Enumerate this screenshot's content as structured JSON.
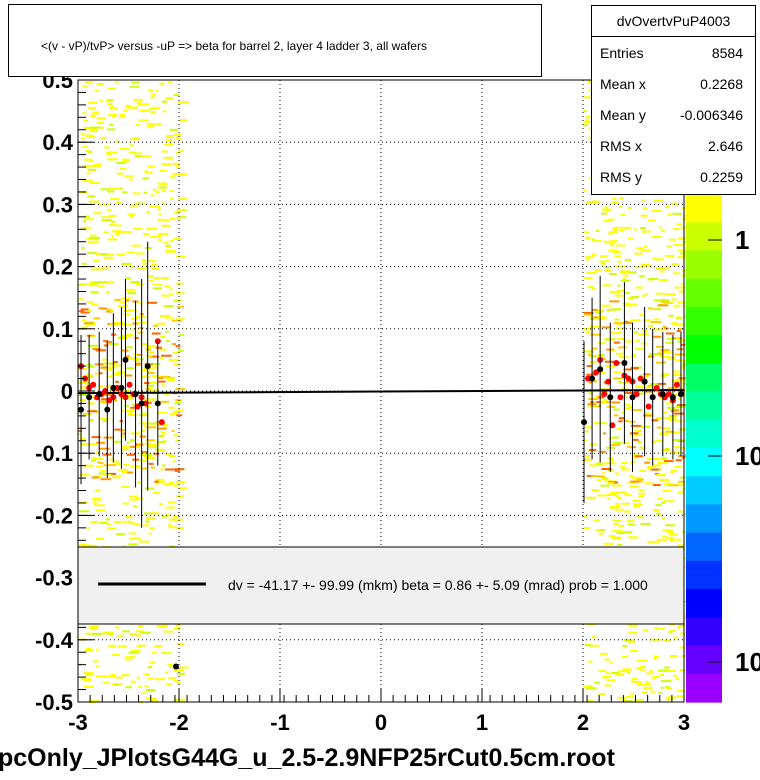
{
  "title": "<(v - vP)/tvP> versus  -uP => beta for barrel 2, layer 4 ladder 3, all wafers",
  "stats": {
    "name": "dvOvertvPuP4003",
    "rows": [
      {
        "key": "Entries",
        "value": "8584"
      },
      {
        "key": "Mean x",
        "value": "0.2268"
      },
      {
        "key": "Mean y",
        "value": "-0.006346"
      },
      {
        "key": "RMS x",
        "value": "2.646"
      },
      {
        "key": "RMS y",
        "value": "0.2259"
      }
    ]
  },
  "fit_legend": "dv =  -41.17 +- 99.99 (mkm) beta =    0.86 +-  5.09 (mrad) prob = 1.000",
  "file_label": "pcOnly_JPlotsG44G_u_2.5-2.9NFP25rCut0.5cm.root",
  "chart_data": {
    "type": "scatter",
    "title": "<(v - vP)/tvP> versus  -uP => beta for barrel 2, layer 4 ladder 3, all wafers",
    "xlim": [
      -3,
      3
    ],
    "ylim": [
      -0.5,
      0.5
    ],
    "x_ticks": [
      "-3",
      "-2",
      "-1",
      "0",
      "1",
      "2",
      "3"
    ],
    "y_ticks": [
      "-0.5",
      "-0.4",
      "-0.3",
      "-0.2",
      "-0.1",
      "0",
      "0.1",
      "0.2",
      "0.3",
      "0.4",
      "0.5"
    ],
    "z_ticks": [
      "1",
      "10",
      "10"
    ],
    "grid": true,
    "colors": {
      "fit_line": "#000000",
      "red_points": "#ff0000",
      "black_points": "#000000"
    },
    "series": [
      {
        "color": "#ff0000",
        "points": [
          {
            "x": -2.97,
            "y": 0.04
          },
          {
            "x": -2.93,
            "y": 0.02
          },
          {
            "x": -2.89,
            "y": 0.005
          },
          {
            "x": -2.85,
            "y": 0.01
          },
          {
            "x": -2.81,
            "y": -0.01
          },
          {
            "x": -2.77,
            "y": -0.005
          },
          {
            "x": -2.73,
            "y": 0.0
          },
          {
            "x": -2.69,
            "y": -0.015
          },
          {
            "x": -2.65,
            "y": -0.01
          },
          {
            "x": -2.61,
            "y": 0.005
          },
          {
            "x": -2.57,
            "y": -0.005
          },
          {
            "x": -2.53,
            "y": -0.01
          },
          {
            "x": -2.49,
            "y": 0.01
          },
          {
            "x": -2.45,
            "y": -0.005
          },
          {
            "x": -2.41,
            "y": -0.025
          },
          {
            "x": -2.37,
            "y": -0.01
          },
          {
            "x": -2.33,
            "y": -0.02
          },
          {
            "x": -2.21,
            "y": 0.08
          },
          {
            "x": -2.17,
            "y": -0.05
          },
          {
            "x": 2.05,
            "y": 0.02
          },
          {
            "x": 2.13,
            "y": 0.03
          },
          {
            "x": 2.17,
            "y": 0.05
          },
          {
            "x": 2.21,
            "y": -0.005
          },
          {
            "x": 2.25,
            "y": 0.015
          },
          {
            "x": 2.29,
            "y": -0.055
          },
          {
            "x": 2.33,
            "y": 0.045
          },
          {
            "x": 2.37,
            "y": -0.01
          },
          {
            "x": 2.41,
            "y": 0.025
          },
          {
            "x": 2.45,
            "y": 0.02
          },
          {
            "x": 2.49,
            "y": 0.015
          },
          {
            "x": 2.53,
            "y": -0.005
          },
          {
            "x": 2.57,
            "y": 0.02
          },
          {
            "x": 2.61,
            "y": 0.015
          },
          {
            "x": 2.65,
            "y": -0.025
          },
          {
            "x": 2.69,
            "y": -0.01
          },
          {
            "x": 2.73,
            "y": 0.005
          },
          {
            "x": 2.77,
            "y": -0.005
          },
          {
            "x": 2.81,
            "y": -0.01
          },
          {
            "x": 2.85,
            "y": -0.005
          },
          {
            "x": 2.89,
            "y": -0.015
          },
          {
            "x": 2.93,
            "y": 0.01
          },
          {
            "x": 2.97,
            "y": -0.005
          }
        ]
      },
      {
        "color": "#000000",
        "points": [
          {
            "x": -2.97,
            "y": -0.03,
            "err": 0.12
          },
          {
            "x": -2.89,
            "y": -0.01,
            "err": 0.1
          },
          {
            "x": -2.79,
            "y": -0.005,
            "err": 0.1
          },
          {
            "x": -2.71,
            "y": -0.03,
            "err": 0.11
          },
          {
            "x": -2.65,
            "y": 0.005,
            "err": 0.12
          },
          {
            "x": -2.57,
            "y": 0.005,
            "err": 0.13
          },
          {
            "x": -2.53,
            "y": 0.05,
            "err": 0.13
          },
          {
            "x": -2.43,
            "y": -0.005,
            "err": 0.15
          },
          {
            "x": -2.37,
            "y": -0.02,
            "err": 0.2
          },
          {
            "x": -2.31,
            "y": 0.04,
            "err": 0.2
          },
          {
            "x": -2.21,
            "y": -0.02,
            "err": 0.1
          },
          {
            "x": -2.03,
            "y": -0.443,
            "err": 0.0
          },
          {
            "x": 2.01,
            "y": -0.05,
            "err": 0.13
          },
          {
            "x": 2.09,
            "y": 0.02,
            "err": 0.13
          },
          {
            "x": 2.17,
            "y": 0.035,
            "err": 0.15
          },
          {
            "x": 2.27,
            "y": -0.01,
            "err": 0.12
          },
          {
            "x": 2.41,
            "y": 0.045,
            "err": 0.13
          },
          {
            "x": 2.49,
            "y": -0.01,
            "err": 0.12
          },
          {
            "x": 2.61,
            "y": 0.015,
            "err": 0.12
          },
          {
            "x": 2.69,
            "y": -0.01,
            "err": 0.11
          },
          {
            "x": 2.79,
            "y": -0.005,
            "err": 0.1
          },
          {
            "x": 2.89,
            "y": -0.01,
            "err": 0.1
          },
          {
            "x": 2.97,
            "y": -0.005,
            "err": 0.1
          }
        ]
      }
    ],
    "fit_line": {
      "x": [
        -3,
        3
      ],
      "y": [
        -0.0035,
        0.0017
      ]
    }
  }
}
